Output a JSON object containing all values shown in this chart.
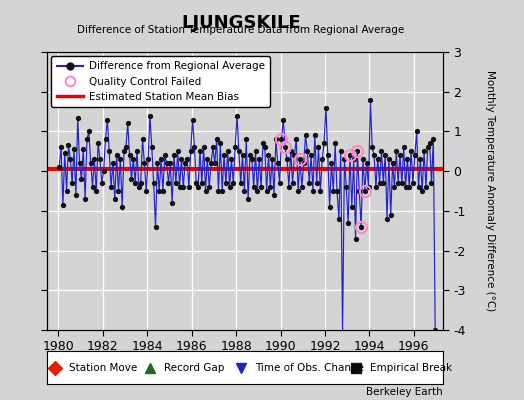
{
  "title": "LJUNGSKILE",
  "subtitle": "Difference of Station Temperature Data from Regional Average",
  "ylabel": "Monthly Temperature Anomaly Difference (°C)",
  "xlim": [
    1979.5,
    1997.3
  ],
  "ylim": [
    -4.0,
    3.0
  ],
  "yticks": [
    -4,
    -3,
    -2,
    -1,
    0,
    1,
    2,
    3
  ],
  "xticks": [
    1980,
    1982,
    1984,
    1986,
    1988,
    1990,
    1992,
    1994,
    1996
  ],
  "bias_value": 0.05,
  "bg_color": "#d4d4d4",
  "line_color": "#2222cc",
  "dot_color": "#111111",
  "bias_color": "#ee0000",
  "qc_color": "#ff88cc",
  "watermark": "Berkeley Earth",
  "times": [
    1980.042,
    1980.125,
    1980.208,
    1980.292,
    1980.375,
    1980.458,
    1980.542,
    1980.625,
    1980.708,
    1980.792,
    1980.875,
    1980.958,
    1981.042,
    1981.125,
    1981.208,
    1981.292,
    1981.375,
    1981.458,
    1981.542,
    1981.625,
    1981.708,
    1981.792,
    1981.875,
    1981.958,
    1982.042,
    1982.125,
    1982.208,
    1982.292,
    1982.375,
    1982.458,
    1982.542,
    1982.625,
    1982.708,
    1982.792,
    1982.875,
    1982.958,
    1983.042,
    1983.125,
    1983.208,
    1983.292,
    1983.375,
    1983.458,
    1983.542,
    1983.625,
    1983.708,
    1983.792,
    1983.875,
    1983.958,
    1984.042,
    1984.125,
    1984.208,
    1984.292,
    1984.375,
    1984.458,
    1984.542,
    1984.625,
    1984.708,
    1984.792,
    1984.875,
    1984.958,
    1985.042,
    1985.125,
    1985.208,
    1985.292,
    1985.375,
    1985.458,
    1985.542,
    1985.625,
    1985.708,
    1985.792,
    1985.875,
    1985.958,
    1986.042,
    1986.125,
    1986.208,
    1986.292,
    1986.375,
    1986.458,
    1986.542,
    1986.625,
    1986.708,
    1986.792,
    1986.875,
    1986.958,
    1987.042,
    1987.125,
    1987.208,
    1987.292,
    1987.375,
    1987.458,
    1987.542,
    1987.625,
    1987.708,
    1987.792,
    1987.875,
    1987.958,
    1988.042,
    1988.125,
    1988.208,
    1988.292,
    1988.375,
    1988.458,
    1988.542,
    1988.625,
    1988.708,
    1988.792,
    1988.875,
    1988.958,
    1989.042,
    1989.125,
    1989.208,
    1989.292,
    1989.375,
    1989.458,
    1989.542,
    1989.625,
    1989.708,
    1989.792,
    1989.875,
    1989.958,
    1990.042,
    1990.125,
    1990.208,
    1990.292,
    1990.375,
    1990.458,
    1990.542,
    1990.625,
    1990.708,
    1990.792,
    1990.875,
    1990.958,
    1991.042,
    1991.125,
    1991.208,
    1991.292,
    1991.375,
    1991.458,
    1991.542,
    1991.625,
    1991.708,
    1991.792,
    1991.875,
    1991.958,
    1992.042,
    1992.125,
    1992.208,
    1992.292,
    1992.375,
    1992.458,
    1992.542,
    1992.625,
    1992.708,
    1992.792,
    1992.875,
    1992.958,
    1993.042,
    1993.125,
    1993.208,
    1993.292,
    1993.375,
    1993.458,
    1993.542,
    1993.625,
    1993.708,
    1993.792,
    1993.875,
    1993.958,
    1994.042,
    1994.125,
    1994.208,
    1994.292,
    1994.375,
    1994.458,
    1994.542,
    1994.625,
    1994.708,
    1994.792,
    1994.875,
    1994.958,
    1995.042,
    1995.125,
    1995.208,
    1995.292,
    1995.375,
    1995.458,
    1995.542,
    1995.625,
    1995.708,
    1995.792,
    1995.875,
    1995.958,
    1996.042,
    1996.125,
    1996.208,
    1996.292,
    1996.375,
    1996.458,
    1996.542,
    1996.625,
    1996.708,
    1996.792,
    1996.875,
    1996.958
  ],
  "values": [
    0.1,
    0.6,
    -0.85,
    0.45,
    -0.5,
    0.65,
    0.3,
    -0.3,
    0.55,
    -0.6,
    1.35,
    0.2,
    -0.2,
    0.55,
    -0.7,
    0.8,
    1.0,
    0.2,
    -0.4,
    0.3,
    -0.5,
    0.7,
    0.3,
    -0.3,
    0.0,
    0.8,
    1.3,
    0.5,
    -0.4,
    0.2,
    -0.7,
    0.4,
    -0.5,
    0.3,
    -0.9,
    0.5,
    0.6,
    1.2,
    0.4,
    -0.2,
    0.3,
    -0.3,
    0.5,
    -0.4,
    -0.3,
    0.8,
    0.2,
    -0.5,
    0.3,
    1.4,
    0.6,
    -0.3,
    -1.4,
    0.2,
    -0.5,
    0.3,
    -0.5,
    0.4,
    0.2,
    -0.3,
    0.2,
    -0.8,
    0.4,
    -0.3,
    0.5,
    -0.4,
    0.3,
    -0.4,
    0.2,
    0.3,
    -0.4,
    0.5,
    1.3,
    0.6,
    -0.3,
    -0.4,
    0.5,
    -0.3,
    0.6,
    -0.5,
    0.3,
    -0.4,
    0.2,
    0.6,
    0.2,
    0.8,
    -0.5,
    0.7,
    -0.5,
    0.4,
    -0.3,
    0.5,
    -0.4,
    0.3,
    -0.3,
    0.6,
    1.4,
    0.5,
    -0.3,
    0.4,
    -0.5,
    0.8,
    -0.7,
    0.4,
    0.3,
    -0.4,
    0.5,
    -0.5,
    0.3,
    -0.4,
    0.7,
    0.6,
    -0.5,
    0.4,
    -0.4,
    0.3,
    -0.6,
    0.8,
    0.2,
    -0.3,
    0.8,
    1.3,
    0.6,
    0.3,
    -0.4,
    0.5,
    -0.3,
    0.4,
    0.8,
    -0.5,
    0.3,
    -0.4,
    0.2,
    0.9,
    0.5,
    -0.3,
    0.4,
    -0.5,
    0.9,
    -0.3,
    0.6,
    -0.5,
    0.3,
    0.7,
    1.6,
    0.4,
    -0.9,
    0.2,
    -0.5,
    0.7,
    -0.5,
    -1.2,
    0.5,
    -4.05,
    0.3,
    -0.4,
    -1.3,
    0.4,
    -0.9,
    0.3,
    -1.7,
    0.5,
    -0.5,
    -1.4,
    0.3,
    -0.5,
    0.2,
    -0.4,
    1.8,
    0.6,
    0.4,
    -0.4,
    0.3,
    -0.3,
    0.5,
    -0.3,
    0.4,
    -1.2,
    0.3,
    -1.1,
    0.2,
    -0.4,
    0.5,
    -0.3,
    0.4,
    -0.3,
    0.6,
    -0.4,
    0.3,
    -0.4,
    0.5,
    -0.3,
    0.4,
    1.0,
    -0.4,
    0.3,
    -0.5,
    0.5,
    -0.4,
    0.6,
    0.7,
    -0.3,
    0.8,
    -4.0
  ],
  "qc_fail_indices": [
    120,
    122,
    130,
    157,
    161,
    163,
    165
  ]
}
